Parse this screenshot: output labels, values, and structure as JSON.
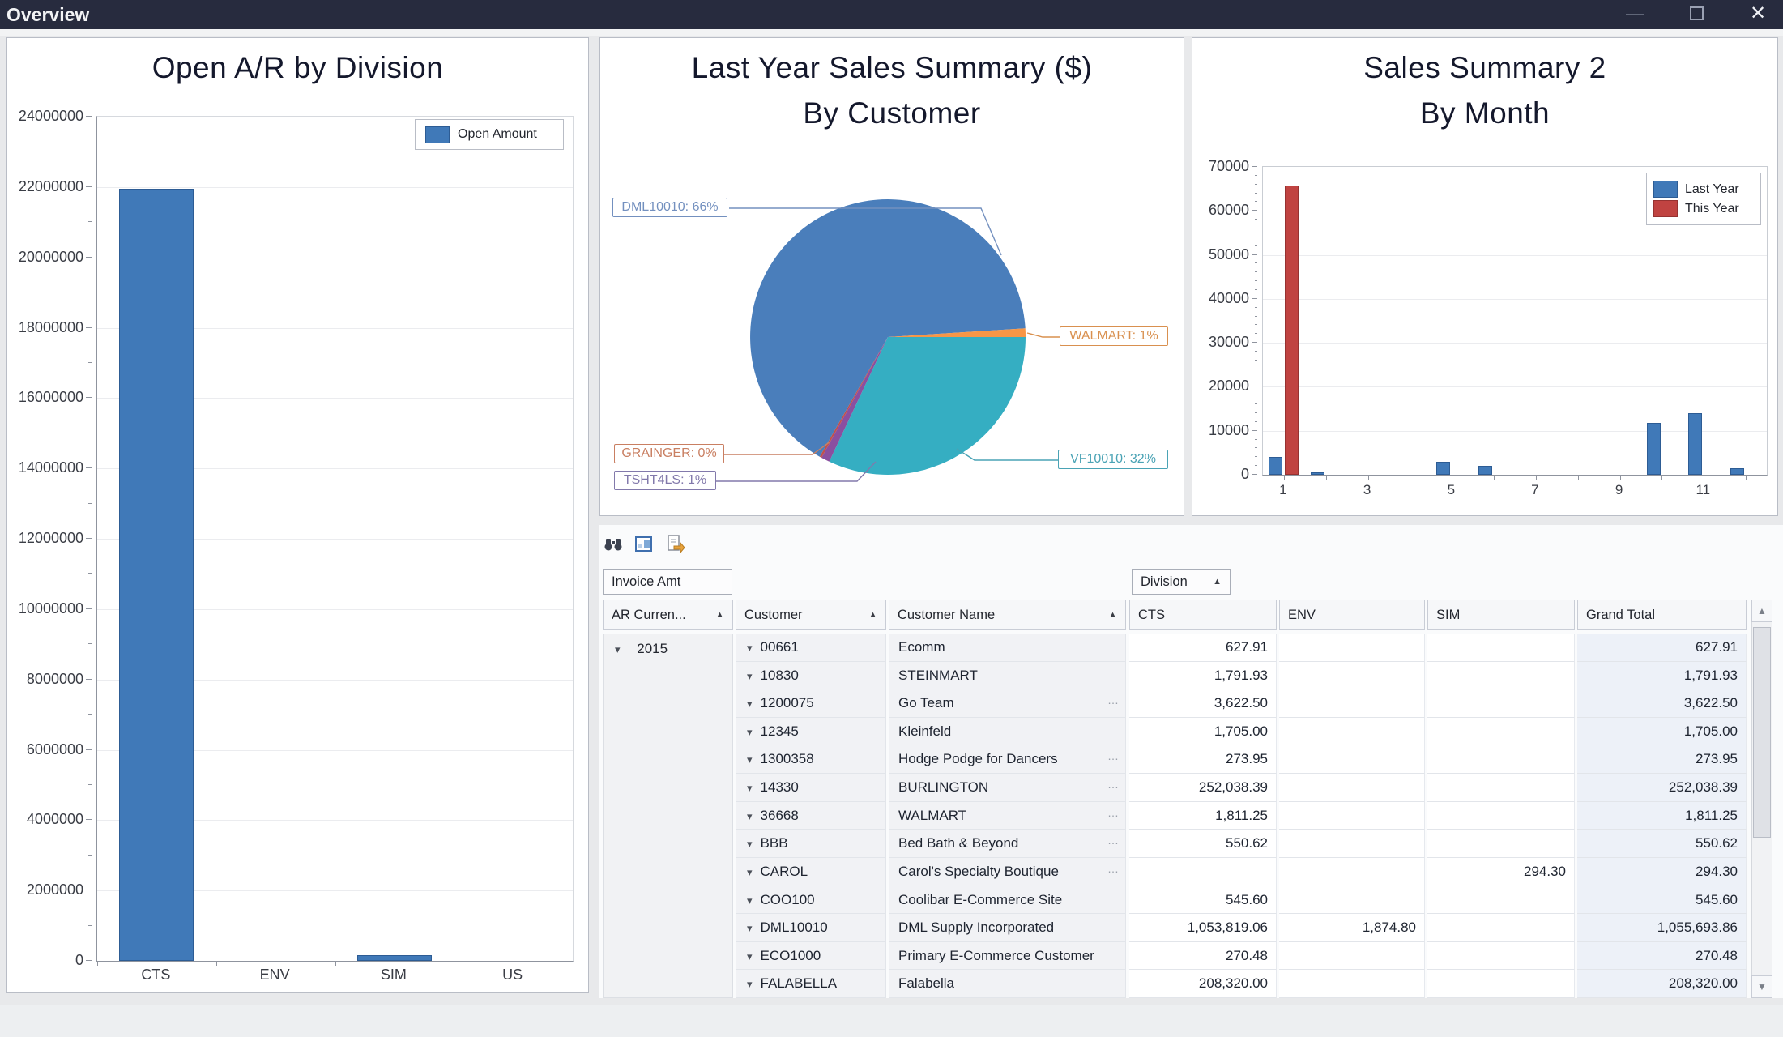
{
  "window": {
    "title": "Overview"
  },
  "chart_data": [
    {
      "id": "open_ar_by_division",
      "type": "bar",
      "title": "Open A/R by Division",
      "legend": [
        "Open Amount"
      ],
      "categories": [
        "CTS",
        "ENV",
        "SIM",
        "US"
      ],
      "values": [
        21950000,
        0,
        160000,
        0
      ],
      "ylim": [
        0,
        24000000
      ],
      "ytick_step": 2000000,
      "bar_color": "#4079b8",
      "bar_border": "#2d5c94",
      "legend_position": "top-right",
      "grid": true
    },
    {
      "id": "last_year_sales_by_customer",
      "type": "pie",
      "title": "Last Year Sales Summary ($)",
      "subtitle": "By Customer",
      "slices": [
        {
          "name": "VF10010",
          "label": "VF10010: 32%",
          "value": 32,
          "color": "#35aec2",
          "label_color": "#4aa3b5"
        },
        {
          "name": "TSHT4LS",
          "label": "TSHT4LS: 1%",
          "value": 1,
          "color": "#8a4fa0",
          "label_color": "#8279ab"
        },
        {
          "name": "GRAINGER",
          "label": "GRAINGER: 0%",
          "value": 0.25,
          "color": "#c0504d",
          "label_color": "#c97f62"
        },
        {
          "name": "DML10010",
          "label": "DML10010: 66%",
          "value": 65.75,
          "color": "#4a7ebb",
          "label_color": "#7390bf"
        },
        {
          "name": "WALMART",
          "label": "WALMART: 1%",
          "value": 1,
          "color": "#f79646",
          "label_color": "#d9904f"
        }
      ]
    },
    {
      "id": "sales_summary_2_by_month",
      "type": "bar",
      "title": "Sales Summary 2",
      "subtitle": "By Month",
      "categories": [
        "1",
        "2",
        "3",
        "4",
        "5",
        "6",
        "7",
        "8",
        "9",
        "10",
        "11",
        "12"
      ],
      "xtick_labels": [
        "1",
        "3",
        "5",
        "7",
        "9",
        "11"
      ],
      "series": [
        {
          "name": "Last Year",
          "color": "#4079b8",
          "border": "#2d5c94",
          "values": [
            4000,
            600,
            0,
            0,
            3000,
            2000,
            0,
            0,
            0,
            11800,
            14000,
            1500
          ]
        },
        {
          "name": "This Year",
          "color": "#c04341",
          "border": "#963231",
          "values": [
            65800,
            0,
            0,
            0,
            0,
            0,
            0,
            0,
            0,
            0,
            0,
            0
          ]
        }
      ],
      "ylim": [
        0,
        70000
      ],
      "ytick_step": 10000,
      "legend_position": "top-right",
      "grid": true
    }
  ],
  "pivot": {
    "toolbar_icons": [
      "binoculars-icon",
      "chart-window-icon",
      "export-icon"
    ],
    "data_field": "Invoice Amt",
    "column_field": "Division",
    "row_headers": [
      {
        "label": "AR Curren...",
        "sorted": "asc"
      },
      {
        "label": "Customer",
        "sorted": "asc"
      },
      {
        "label": "Customer Name",
        "sorted": "asc"
      }
    ],
    "value_columns": [
      "CTS",
      "ENV",
      "SIM",
      "Grand Total"
    ],
    "year_group": "2015",
    "rows": [
      {
        "customer": "00661",
        "name": "Ecomm",
        "ellipsis": false,
        "cts": "627.91",
        "env": "",
        "sim": "",
        "total": "627.91"
      },
      {
        "customer": "10830",
        "name": "STEINMART",
        "ellipsis": false,
        "cts": "1,791.93",
        "env": "",
        "sim": "",
        "total": "1,791.93"
      },
      {
        "customer": "1200075",
        "name": "Go Team",
        "ellipsis": true,
        "cts": "3,622.50",
        "env": "",
        "sim": "",
        "total": "3,622.50"
      },
      {
        "customer": "12345",
        "name": "Kleinfeld",
        "ellipsis": false,
        "cts": "1,705.00",
        "env": "",
        "sim": "",
        "total": "1,705.00"
      },
      {
        "customer": "1300358",
        "name": "Hodge Podge for Dancers",
        "ellipsis": true,
        "cts": "273.95",
        "env": "",
        "sim": "",
        "total": "273.95"
      },
      {
        "customer": "14330",
        "name": "BURLINGTON",
        "ellipsis": true,
        "cts": "252,038.39",
        "env": "",
        "sim": "",
        "total": "252,038.39"
      },
      {
        "customer": "36668",
        "name": "WALMART",
        "ellipsis": true,
        "cts": "1,811.25",
        "env": "",
        "sim": "",
        "total": "1,811.25"
      },
      {
        "customer": "BBB",
        "name": "Bed Bath & Beyond",
        "ellipsis": true,
        "cts": "550.62",
        "env": "",
        "sim": "",
        "total": "550.62"
      },
      {
        "customer": "CAROL",
        "name": "Carol's Specialty Boutique",
        "ellipsis": true,
        "cts": "",
        "env": "",
        "sim": "294.30",
        "total": "294.30"
      },
      {
        "customer": "COO100",
        "name": "Coolibar E-Commerce Site",
        "ellipsis": false,
        "cts": "545.60",
        "env": "",
        "sim": "",
        "total": "545.60"
      },
      {
        "customer": "DML10010",
        "name": "DML Supply Incorporated",
        "ellipsis": false,
        "cts": "1,053,819.06",
        "env": "1,874.80",
        "sim": "",
        "total": "1,055,693.86"
      },
      {
        "customer": "ECO1000",
        "name": "Primary E-Commerce Customer",
        "ellipsis": false,
        "cts": "270.48",
        "env": "",
        "sim": "",
        "total": "270.48"
      },
      {
        "customer": "FALABELLA",
        "name": "Falabella",
        "ellipsis": false,
        "cts": "208,320.00",
        "env": "",
        "sim": "",
        "total": "208,320.00"
      }
    ]
  },
  "colors": {
    "titlebar": "#272b3e",
    "accent_blue": "#4079b8",
    "accent_red": "#c04341",
    "accent_teal": "#35aec2",
    "accent_purple": "#8a4fa0",
    "accent_orange": "#f79646",
    "grand_total_bg": "#edf1f8"
  }
}
